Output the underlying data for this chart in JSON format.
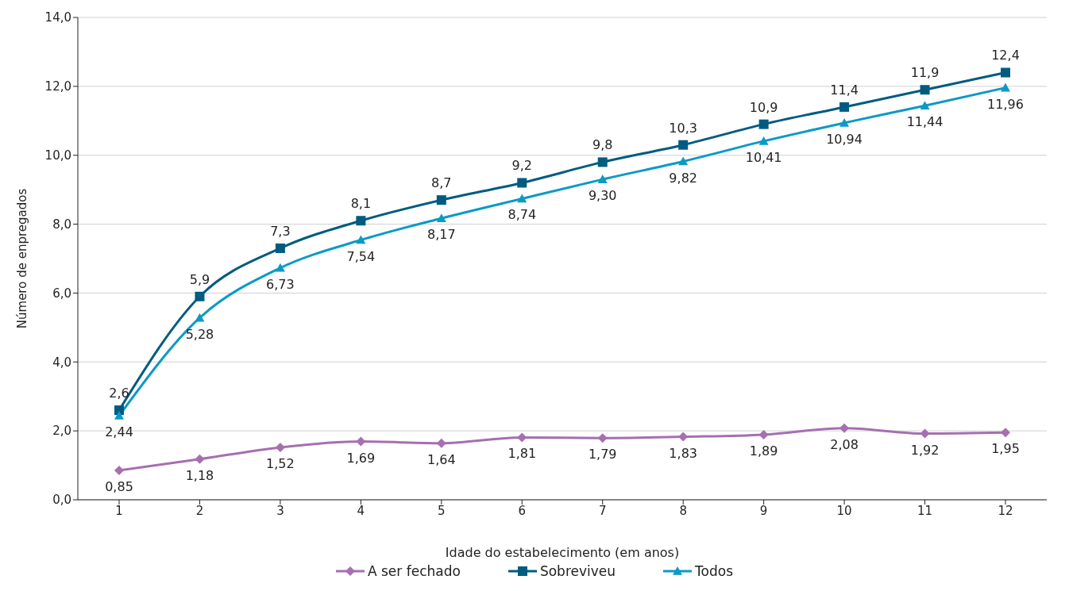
{
  "chart_data": {
    "type": "line",
    "xlabel": "Idade do estabelecimento (em anos)",
    "ylabel": "Número de enpregados",
    "categories": [
      "1",
      "2",
      "3",
      "4",
      "5",
      "6",
      "7",
      "8",
      "9",
      "10",
      "11",
      "12"
    ],
    "series": [
      {
        "name": "A ser fechado",
        "color": "#a66fb1",
        "marker": "diamond",
        "values": [
          0.85,
          1.18,
          1.52,
          1.69,
          1.64,
          1.81,
          1.79,
          1.83,
          1.89,
          2.08,
          1.92,
          1.95
        ],
        "value_labels": [
          "0,85",
          "1,18",
          "1,52",
          "1,69",
          "1,64",
          "1,81",
          "1,79",
          "1,83",
          "1,89",
          "2,08",
          "1,92",
          "1,95"
        ]
      },
      {
        "name": "Sobreviveu",
        "color": "#005b80",
        "marker": "square",
        "values": [
          2.6,
          5.9,
          7.3,
          8.1,
          8.7,
          9.2,
          9.8,
          10.3,
          10.9,
          11.4,
          11.9,
          12.4
        ],
        "value_labels": [
          "2,6",
          "5,9",
          "7,3",
          "8,1",
          "8,7",
          "9,2",
          "9,8",
          "10,3",
          "10,9",
          "11,4",
          "11,9",
          "12,4"
        ]
      },
      {
        "name": "Todos",
        "color": "#0b9ac6",
        "marker": "triangle",
        "values": [
          2.44,
          5.28,
          6.73,
          7.54,
          8.17,
          8.74,
          9.3,
          9.82,
          10.41,
          10.94,
          11.44,
          11.96
        ],
        "value_labels": [
          "2,44",
          "5,28",
          "6,73",
          "7,54",
          "8,17",
          "8,74",
          "9,30",
          "9,82",
          "10,41",
          "10,94",
          "11,44",
          "11,96"
        ]
      }
    ],
    "ylim": [
      0,
      14
    ],
    "yticks": [
      {
        "value": 0,
        "label": "0,0"
      },
      {
        "value": 2,
        "label": "2,0"
      },
      {
        "value": 4,
        "label": "4,0"
      },
      {
        "value": 6,
        "label": "6,0"
      },
      {
        "value": 8,
        "label": "8,0"
      },
      {
        "value": 10,
        "label": "10,0"
      },
      {
        "value": 12,
        "label": "12,0"
      },
      {
        "value": 14,
        "label": "14,0"
      }
    ],
    "grid": "y",
    "legend": "bottom",
    "line_style": "solid"
  }
}
